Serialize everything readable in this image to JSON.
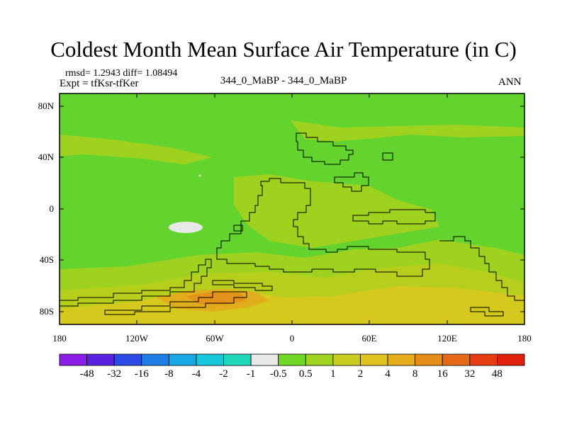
{
  "title": "Coldest Month Mean Surface Air Temperature (in C)",
  "stats": {
    "rmsd_label": "rmsd= 1.2943",
    "diff_label": "diff= 1.08494"
  },
  "experiment": "Expt = tfKsr-tfKer",
  "case_comparison": "344_0_MaBP - 344_0_MaBP",
  "season": "ANN",
  "lat_ticks": [
    "80N",
    "40N",
    "0",
    "40S",
    "80S"
  ],
  "lon_ticks": [
    "180",
    "120W",
    "60W",
    "0",
    "60E",
    "120E",
    "180"
  ],
  "colorbar": {
    "colors": [
      "#8a1ee6",
      "#5a21e0",
      "#2e4ae6",
      "#1f7de6",
      "#19a8e6",
      "#17c8dc",
      "#20d8b8",
      "#e8e8e8",
      "#6fd827",
      "#9fd320",
      "#c8cc1e",
      "#dfc31c",
      "#e6ac1c",
      "#e68e1a",
      "#e66a16",
      "#e43e10",
      "#e0200c"
    ],
    "labels": [
      "-48",
      "-32",
      "-16",
      "-8",
      "-4",
      "-2",
      "-1",
      "-0.5",
      "0.5",
      "1",
      "2",
      "4",
      "8",
      "16",
      "32",
      "48"
    ]
  },
  "map_colors": {
    "base_green": "#63d42d",
    "yellow_green": "#9fd21e",
    "olive": "#b6cf1c",
    "yellow": "#d4c91c",
    "orange": "#e2ad1c",
    "dark_orange": "#e4921a",
    "white_patch": "#e8e8e8"
  }
}
